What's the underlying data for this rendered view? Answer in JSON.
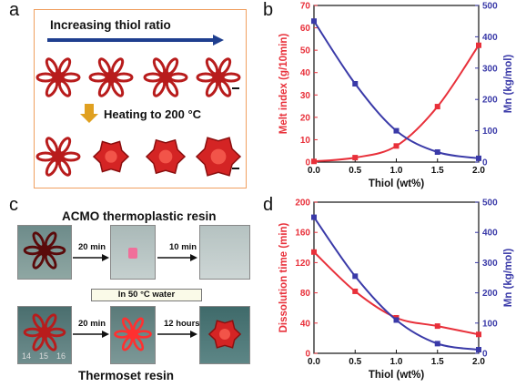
{
  "panels": {
    "a": {
      "letter": "a",
      "title": "Increasing thiol ratio",
      "step": "Heating to 200 °C"
    },
    "b": {
      "letter": "b"
    },
    "c": {
      "letter": "c",
      "title_top": "ACMO thermoplastic resin",
      "title_bottom": "Thermoset resin",
      "condition": "In 50 °C water",
      "arrows_top": [
        "20 min",
        "10 min"
      ],
      "arrows_bottom": [
        "20 min",
        "12 hours"
      ],
      "ruler_marks": [
        "14",
        "15",
        "16"
      ]
    },
    "d": {
      "letter": "d"
    }
  },
  "chart_data": [
    {
      "type": "scatter",
      "panel": "b",
      "xlabel": "Thiol (wt%)",
      "ylabel_left": "Melt index (g/10min)",
      "ylabel_right": "Mn (kg/mol)",
      "xlim": [
        0.0,
        2.0
      ],
      "ylim_left": [
        0,
        70
      ],
      "ylim_right": [
        0,
        500
      ],
      "x_ticks": [
        "0.0",
        "0.5",
        "1.0",
        "1.5",
        "2.0"
      ],
      "y_ticks_left": [
        "0",
        "10",
        "20",
        "30",
        "40",
        "50",
        "60",
        "70"
      ],
      "y_ticks_right": [
        "0",
        "100",
        "200",
        "300",
        "400",
        "500"
      ],
      "series": [
        {
          "axis": "left",
          "color": "#e8303a",
          "x": [
            0.0,
            0.5,
            1.0,
            1.5,
            2.0
          ],
          "y": [
            0.3,
            2.0,
            7.2,
            24.8,
            52.2
          ]
        },
        {
          "axis": "right",
          "color": "#3a3aa8",
          "x": [
            0.0,
            0.5,
            1.0,
            1.5,
            2.0
          ],
          "y": [
            450,
            250,
            100,
            32,
            12
          ]
        }
      ]
    },
    {
      "type": "scatter",
      "panel": "d",
      "xlabel": "Thiol (wt%)",
      "ylabel_left": "Dissolution time (min)",
      "ylabel_right": "Mn (kg/mol)",
      "xlim": [
        0.0,
        2.0
      ],
      "ylim_left": [
        0,
        200
      ],
      "ylim_right": [
        0,
        500
      ],
      "x_ticks": [
        "0.0",
        "0.5",
        "1.0",
        "1.5",
        "2.0"
      ],
      "y_ticks_left": [
        "0",
        "40",
        "80",
        "120",
        "160",
        "200"
      ],
      "y_ticks_right": [
        "0",
        "100",
        "200",
        "300",
        "400",
        "500"
      ],
      "series": [
        {
          "axis": "left",
          "color": "#e8303a",
          "x": [
            0.0,
            0.5,
            1.0,
            1.5,
            2.0
          ],
          "y": [
            134,
            82,
            47,
            36,
            25
          ]
        },
        {
          "axis": "right",
          "color": "#3a3aa8",
          "x": [
            0.0,
            0.5,
            1.0,
            1.5,
            2.0
          ],
          "y": [
            450,
            255,
            110,
            32,
            12
          ]
        }
      ]
    }
  ]
}
